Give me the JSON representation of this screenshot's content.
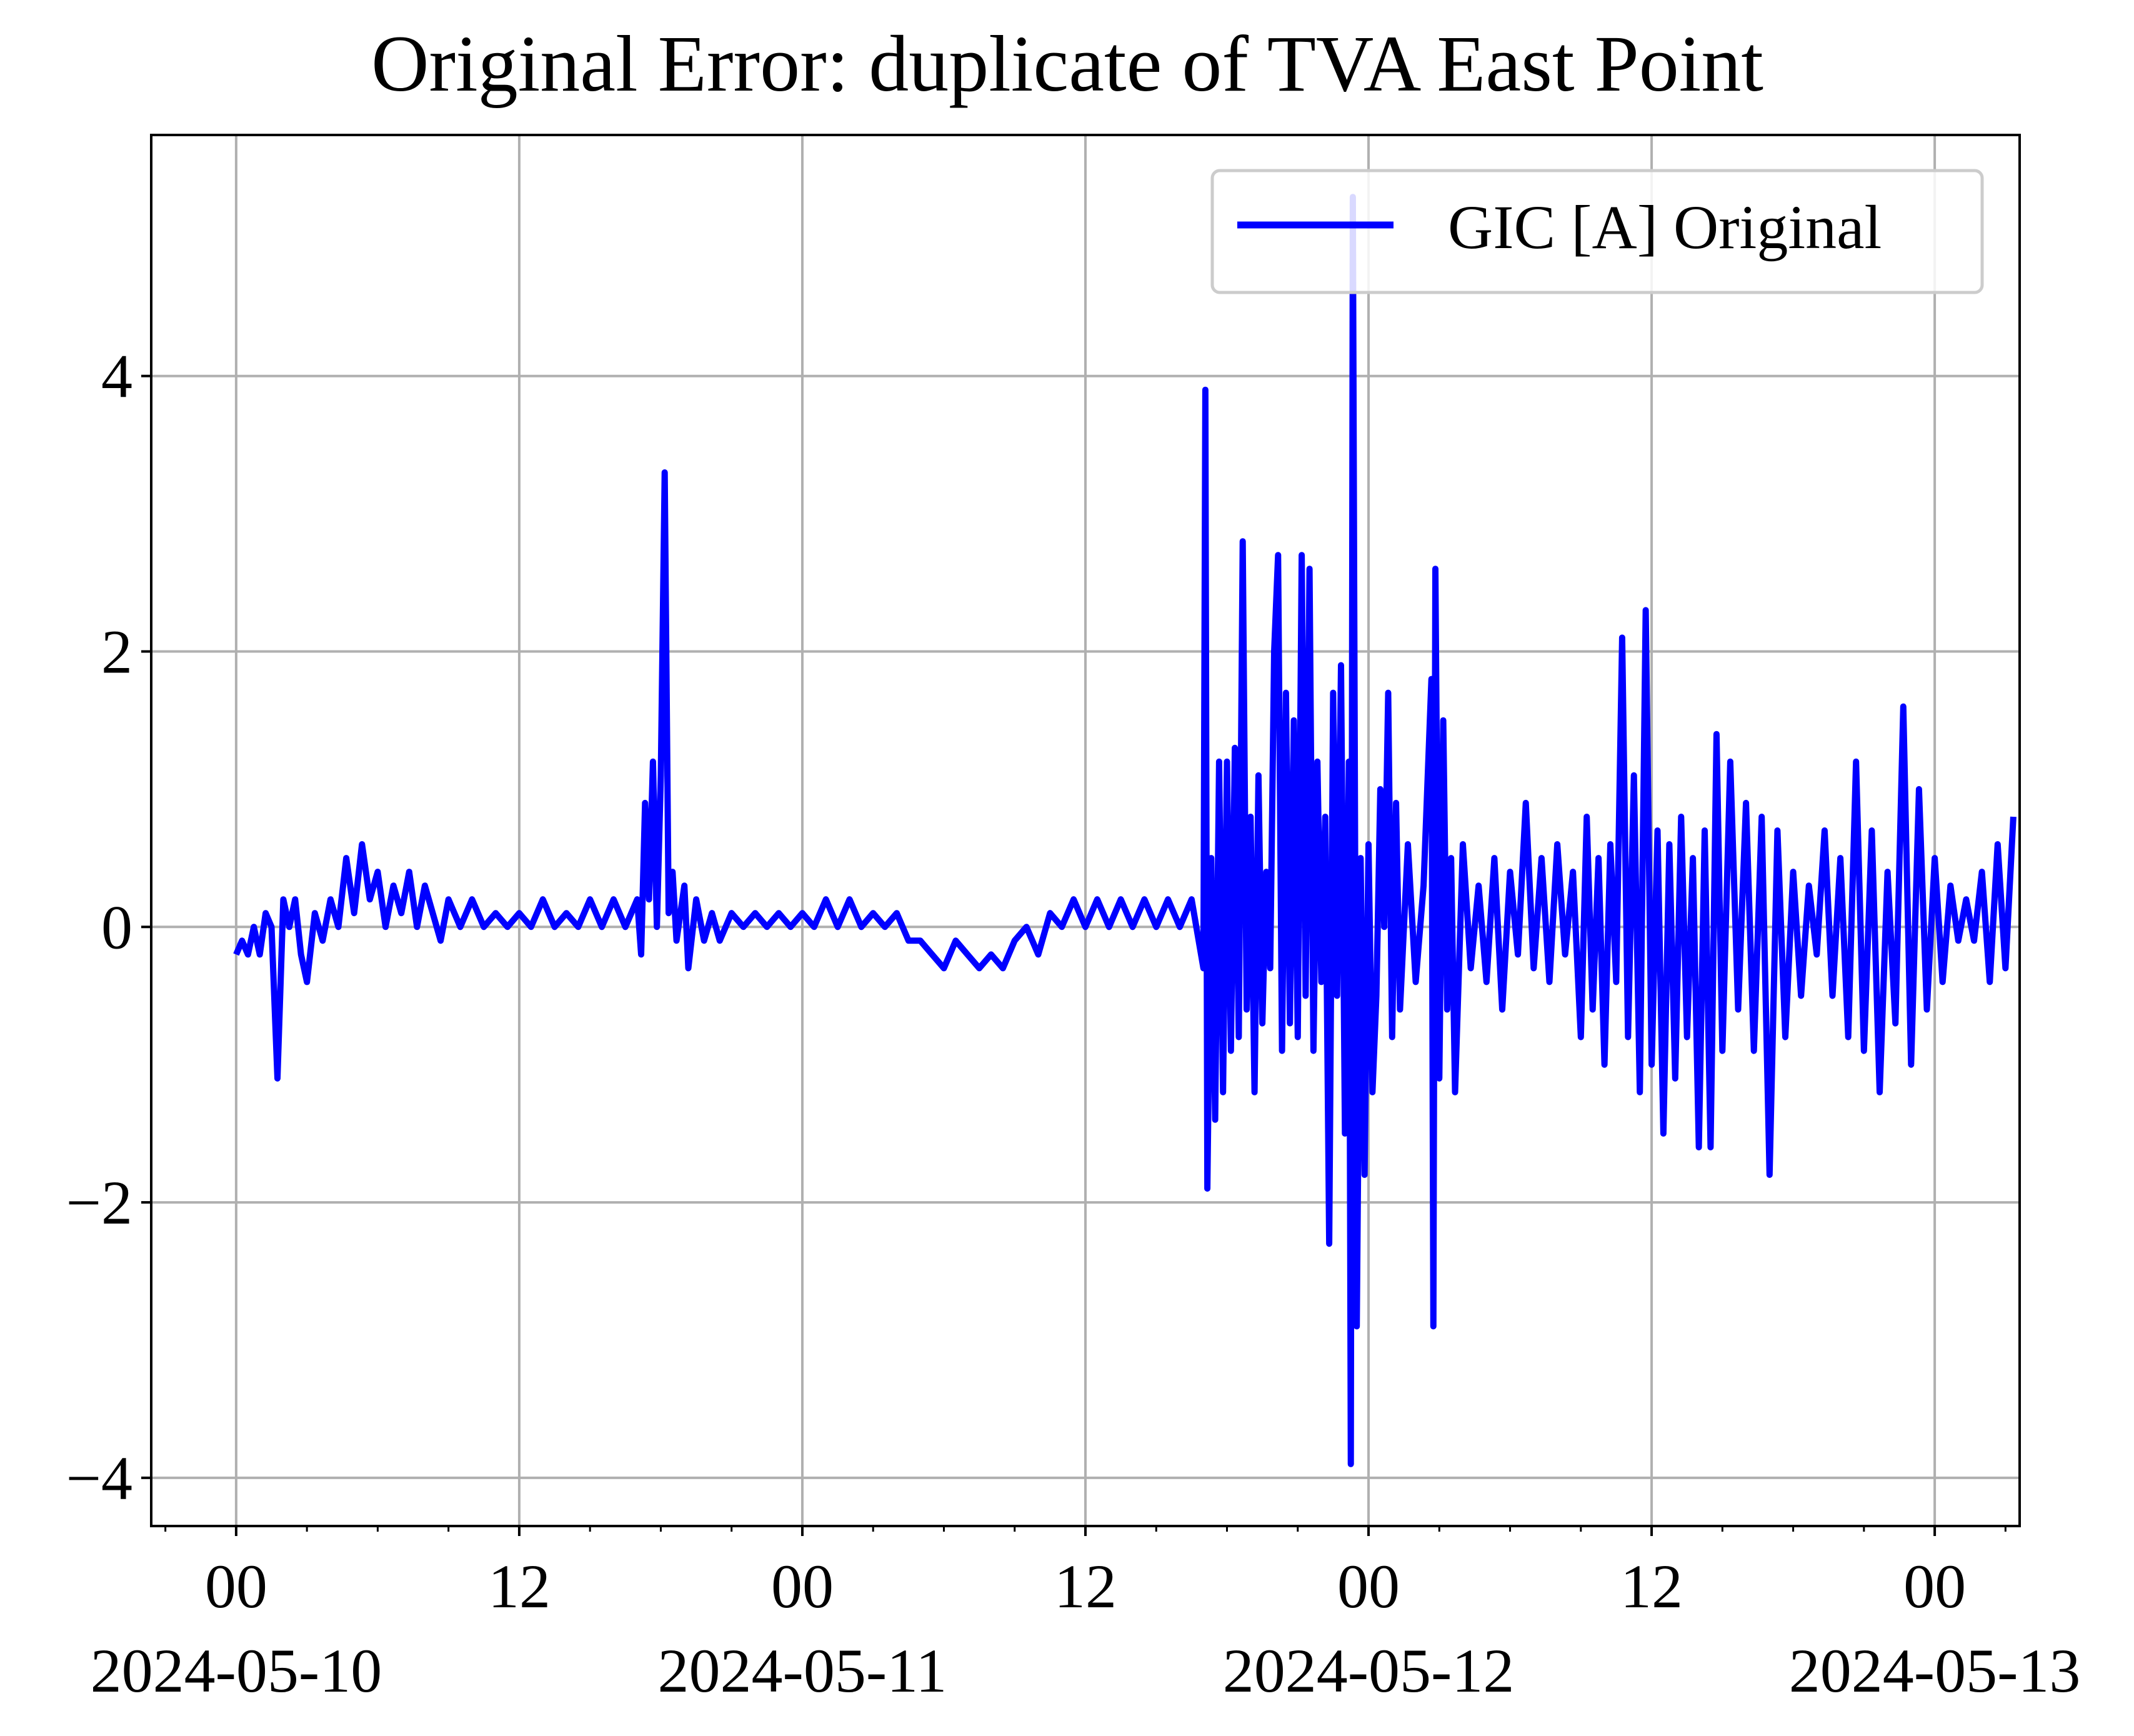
{
  "chart_data": {
    "type": "line",
    "title": "Original Error: duplicate of TVA East Point",
    "xlabel": "",
    "ylabel": "",
    "x_range": [
      "2024-05-09T20:24",
      "2024-05-13T03:36"
    ],
    "ylim": [
      -4.35,
      5.75
    ],
    "y_ticks": [
      -4,
      -2,
      0,
      2,
      4
    ],
    "y_tick_labels": [
      "−4",
      "−2",
      "0",
      "2",
      "4"
    ],
    "x_ticks": [
      {
        "at": "2024-05-10T00:00",
        "hour": "00",
        "date": "2024-05-10"
      },
      {
        "at": "2024-05-10T12:00",
        "hour": "12",
        "date": ""
      },
      {
        "at": "2024-05-11T00:00",
        "hour": "00",
        "date": "2024-05-11"
      },
      {
        "at": "2024-05-11T12:00",
        "hour": "12",
        "date": ""
      },
      {
        "at": "2024-05-12T00:00",
        "hour": "00",
        "date": "2024-05-12"
      },
      {
        "at": "2024-05-12T12:00",
        "hour": "12",
        "date": ""
      },
      {
        "at": "2024-05-13T00:00",
        "hour": "00",
        "date": "2024-05-13"
      }
    ],
    "minor_tick_interval_hours": 3,
    "grid": true,
    "legend_position": "upper right",
    "series": [
      {
        "name": "GIC [A] Original",
        "color": "#0000ff",
        "points": [
          [
            "2024-05-10T00:00",
            -0.2
          ],
          [
            "2024-05-10T00:15",
            -0.1
          ],
          [
            "2024-05-10T00:30",
            -0.2
          ],
          [
            "2024-05-10T00:45",
            0.0
          ],
          [
            "2024-05-10T01:00",
            -0.2
          ],
          [
            "2024-05-10T01:15",
            0.1
          ],
          [
            "2024-05-10T01:30",
            0.0
          ],
          [
            "2024-05-10T01:45",
            -1.1
          ],
          [
            "2024-05-10T02:00",
            0.2
          ],
          [
            "2024-05-10T02:15",
            0.0
          ],
          [
            "2024-05-10T02:30",
            0.2
          ],
          [
            "2024-05-10T02:45",
            -0.2
          ],
          [
            "2024-05-10T03:00",
            -0.4
          ],
          [
            "2024-05-10T03:20",
            0.1
          ],
          [
            "2024-05-10T03:40",
            -0.1
          ],
          [
            "2024-05-10T04:00",
            0.2
          ],
          [
            "2024-05-10T04:20",
            0.0
          ],
          [
            "2024-05-10T04:40",
            0.5
          ],
          [
            "2024-05-10T05:00",
            0.1
          ],
          [
            "2024-05-10T05:20",
            0.6
          ],
          [
            "2024-05-10T05:40",
            0.2
          ],
          [
            "2024-05-10T06:00",
            0.4
          ],
          [
            "2024-05-10T06:20",
            0.0
          ],
          [
            "2024-05-10T06:40",
            0.3
          ],
          [
            "2024-05-10T07:00",
            0.1
          ],
          [
            "2024-05-10T07:20",
            0.4
          ],
          [
            "2024-05-10T07:40",
            0.0
          ],
          [
            "2024-05-10T08:00",
            0.3
          ],
          [
            "2024-05-10T08:20",
            0.1
          ],
          [
            "2024-05-10T08:40",
            -0.1
          ],
          [
            "2024-05-10T09:00",
            0.2
          ],
          [
            "2024-05-10T09:30",
            0.0
          ],
          [
            "2024-05-10T10:00",
            0.2
          ],
          [
            "2024-05-10T10:30",
            0.0
          ],
          [
            "2024-05-10T11:00",
            0.1
          ],
          [
            "2024-05-10T11:30",
            0.0
          ],
          [
            "2024-05-10T12:00",
            0.1
          ],
          [
            "2024-05-10T12:30",
            0.0
          ],
          [
            "2024-05-10T13:00",
            0.2
          ],
          [
            "2024-05-10T13:30",
            0.0
          ],
          [
            "2024-05-10T14:00",
            0.1
          ],
          [
            "2024-05-10T14:30",
            0.0
          ],
          [
            "2024-05-10T15:00",
            0.2
          ],
          [
            "2024-05-10T15:30",
            0.0
          ],
          [
            "2024-05-10T16:00",
            0.2
          ],
          [
            "2024-05-10T16:30",
            0.0
          ],
          [
            "2024-05-10T17:00",
            0.2
          ],
          [
            "2024-05-10T17:10",
            -0.2
          ],
          [
            "2024-05-10T17:20",
            0.9
          ],
          [
            "2024-05-10T17:30",
            0.2
          ],
          [
            "2024-05-10T17:40",
            1.2
          ],
          [
            "2024-05-10T17:50",
            0.0
          ],
          [
            "2024-05-10T18:00",
            1.1
          ],
          [
            "2024-05-10T18:10",
            3.3
          ],
          [
            "2024-05-10T18:20",
            0.1
          ],
          [
            "2024-05-10T18:30",
            0.4
          ],
          [
            "2024-05-10T18:40",
            -0.1
          ],
          [
            "2024-05-10T19:00",
            0.3
          ],
          [
            "2024-05-10T19:10",
            -0.3
          ],
          [
            "2024-05-10T19:30",
            0.2
          ],
          [
            "2024-05-10T19:50",
            -0.1
          ],
          [
            "2024-05-10T20:10",
            0.1
          ],
          [
            "2024-05-10T20:30",
            -0.1
          ],
          [
            "2024-05-10T21:00",
            0.1
          ],
          [
            "2024-05-10T21:30",
            0.0
          ],
          [
            "2024-05-10T22:00",
            0.1
          ],
          [
            "2024-05-10T22:30",
            0.0
          ],
          [
            "2024-05-10T23:00",
            0.1
          ],
          [
            "2024-05-10T23:30",
            0.0
          ],
          [
            "2024-05-11T00:00",
            0.1
          ],
          [
            "2024-05-11T00:30",
            0.0
          ],
          [
            "2024-05-11T01:00",
            0.2
          ],
          [
            "2024-05-11T01:30",
            0.0
          ],
          [
            "2024-05-11T02:00",
            0.2
          ],
          [
            "2024-05-11T02:30",
            0.0
          ],
          [
            "2024-05-11T03:00",
            0.1
          ],
          [
            "2024-05-11T03:30",
            0.0
          ],
          [
            "2024-05-11T04:00",
            0.1
          ],
          [
            "2024-05-11T04:30",
            -0.1
          ],
          [
            "2024-05-11T05:00",
            -0.1
          ],
          [
            "2024-05-11T05:30",
            -0.2
          ],
          [
            "2024-05-11T06:00",
            -0.3
          ],
          [
            "2024-05-11T06:30",
            -0.1
          ],
          [
            "2024-05-11T07:00",
            -0.2
          ],
          [
            "2024-05-11T07:30",
            -0.3
          ],
          [
            "2024-05-11T08:00",
            -0.2
          ],
          [
            "2024-05-11T08:30",
            -0.3
          ],
          [
            "2024-05-11T09:00",
            -0.1
          ],
          [
            "2024-05-11T09:30",
            0.0
          ],
          [
            "2024-05-11T10:00",
            -0.2
          ],
          [
            "2024-05-11T10:30",
            0.1
          ],
          [
            "2024-05-11T11:00",
            0.0
          ],
          [
            "2024-05-11T11:30",
            0.2
          ],
          [
            "2024-05-11T12:00",
            0.0
          ],
          [
            "2024-05-11T12:30",
            0.2
          ],
          [
            "2024-05-11T13:00",
            0.0
          ],
          [
            "2024-05-11T13:30",
            0.2
          ],
          [
            "2024-05-11T14:00",
            0.0
          ],
          [
            "2024-05-11T14:30",
            0.2
          ],
          [
            "2024-05-11T15:00",
            0.0
          ],
          [
            "2024-05-11T15:30",
            0.2
          ],
          [
            "2024-05-11T16:00",
            0.0
          ],
          [
            "2024-05-11T16:30",
            0.2
          ],
          [
            "2024-05-11T17:00",
            -0.3
          ],
          [
            "2024-05-11T17:05",
            3.9
          ],
          [
            "2024-05-11T17:10",
            -1.9
          ],
          [
            "2024-05-11T17:20",
            0.5
          ],
          [
            "2024-05-11T17:30",
            -1.4
          ],
          [
            "2024-05-11T17:40",
            1.2
          ],
          [
            "2024-05-11T17:50",
            -1.2
          ],
          [
            "2024-05-11T18:00",
            1.2
          ],
          [
            "2024-05-11T18:10",
            -0.9
          ],
          [
            "2024-05-11T18:20",
            1.3
          ],
          [
            "2024-05-11T18:30",
            -0.8
          ],
          [
            "2024-05-11T18:40",
            2.8
          ],
          [
            "2024-05-11T18:50",
            -0.6
          ],
          [
            "2024-05-11T19:00",
            0.8
          ],
          [
            "2024-05-11T19:10",
            -1.2
          ],
          [
            "2024-05-11T19:20",
            1.1
          ],
          [
            "2024-05-11T19:30",
            -0.7
          ],
          [
            "2024-05-11T19:40",
            0.4
          ],
          [
            "2024-05-11T19:50",
            -0.3
          ],
          [
            "2024-05-11T20:00",
            2.0
          ],
          [
            "2024-05-11T20:10",
            2.7
          ],
          [
            "2024-05-11T20:20",
            -0.9
          ],
          [
            "2024-05-11T20:30",
            1.7
          ],
          [
            "2024-05-11T20:40",
            -0.7
          ],
          [
            "2024-05-11T20:50",
            1.5
          ],
          [
            "2024-05-11T21:00",
            -0.8
          ],
          [
            "2024-05-11T21:10",
            2.7
          ],
          [
            "2024-05-11T21:20",
            -0.5
          ],
          [
            "2024-05-11T21:30",
            2.6
          ],
          [
            "2024-05-11T21:40",
            -0.9
          ],
          [
            "2024-05-11T21:50",
            1.2
          ],
          [
            "2024-05-11T22:00",
            -0.4
          ],
          [
            "2024-05-11T22:10",
            0.8
          ],
          [
            "2024-05-11T22:20",
            -2.3
          ],
          [
            "2024-05-11T22:30",
            1.7
          ],
          [
            "2024-05-11T22:40",
            -0.5
          ],
          [
            "2024-05-11T22:50",
            1.9
          ],
          [
            "2024-05-11T23:00",
            -1.5
          ],
          [
            "2024-05-11T23:10",
            1.2
          ],
          [
            "2024-05-11T23:15",
            -3.9
          ],
          [
            "2024-05-11T23:20",
            5.3
          ],
          [
            "2024-05-11T23:30",
            -2.9
          ],
          [
            "2024-05-11T23:40",
            0.5
          ],
          [
            "2024-05-11T23:50",
            -1.8
          ],
          [
            "2024-05-12T00:00",
            0.6
          ],
          [
            "2024-05-12T00:10",
            -1.2
          ],
          [
            "2024-05-12T00:20",
            -0.5
          ],
          [
            "2024-05-12T00:30",
            1.0
          ],
          [
            "2024-05-12T00:40",
            0.0
          ],
          [
            "2024-05-12T00:50",
            1.7
          ],
          [
            "2024-05-12T01:00",
            -0.8
          ],
          [
            "2024-05-12T01:10",
            0.9
          ],
          [
            "2024-05-12T01:20",
            -0.6
          ],
          [
            "2024-05-12T01:40",
            0.6
          ],
          [
            "2024-05-12T02:00",
            -0.4
          ],
          [
            "2024-05-12T02:20",
            0.3
          ],
          [
            "2024-05-12T02:40",
            1.8
          ],
          [
            "2024-05-12T02:45",
            -2.9
          ],
          [
            "2024-05-12T02:50",
            2.6
          ],
          [
            "2024-05-12T03:00",
            -1.1
          ],
          [
            "2024-05-12T03:10",
            1.5
          ],
          [
            "2024-05-12T03:20",
            -0.6
          ],
          [
            "2024-05-12T03:30",
            0.5
          ],
          [
            "2024-05-12T03:40",
            -1.2
          ],
          [
            "2024-05-12T04:00",
            0.6
          ],
          [
            "2024-05-12T04:20",
            -0.3
          ],
          [
            "2024-05-12T04:40",
            0.3
          ],
          [
            "2024-05-12T05:00",
            -0.4
          ],
          [
            "2024-05-12T05:20",
            0.5
          ],
          [
            "2024-05-12T05:40",
            -0.6
          ],
          [
            "2024-05-12T06:00",
            0.4
          ],
          [
            "2024-05-12T06:20",
            -0.2
          ],
          [
            "2024-05-12T06:40",
            0.9
          ],
          [
            "2024-05-12T07:00",
            -0.3
          ],
          [
            "2024-05-12T07:20",
            0.5
          ],
          [
            "2024-05-12T07:40",
            -0.4
          ],
          [
            "2024-05-12T08:00",
            0.6
          ],
          [
            "2024-05-12T08:20",
            -0.2
          ],
          [
            "2024-05-12T08:40",
            0.4
          ],
          [
            "2024-05-12T09:00",
            -0.8
          ],
          [
            "2024-05-12T09:15",
            0.8
          ],
          [
            "2024-05-12T09:30",
            -0.6
          ],
          [
            "2024-05-12T09:45",
            0.5
          ],
          [
            "2024-05-12T10:00",
            -1.0
          ],
          [
            "2024-05-12T10:15",
            0.6
          ],
          [
            "2024-05-12T10:30",
            -0.4
          ],
          [
            "2024-05-12T10:45",
            2.1
          ],
          [
            "2024-05-12T11:00",
            -0.8
          ],
          [
            "2024-05-12T11:15",
            1.1
          ],
          [
            "2024-05-12T11:30",
            -1.2
          ],
          [
            "2024-05-12T11:45",
            2.3
          ],
          [
            "2024-05-12T12:00",
            -1.0
          ],
          [
            "2024-05-12T12:15",
            0.7
          ],
          [
            "2024-05-12T12:30",
            -1.5
          ],
          [
            "2024-05-12T12:45",
            0.6
          ],
          [
            "2024-05-12T13:00",
            -1.1
          ],
          [
            "2024-05-12T13:15",
            0.8
          ],
          [
            "2024-05-12T13:30",
            -0.8
          ],
          [
            "2024-05-12T13:45",
            0.5
          ],
          [
            "2024-05-12T14:00",
            -1.6
          ],
          [
            "2024-05-12T14:15",
            0.7
          ],
          [
            "2024-05-12T14:30",
            -1.6
          ],
          [
            "2024-05-12T14:45",
            1.4
          ],
          [
            "2024-05-12T15:00",
            -0.9
          ],
          [
            "2024-05-12T15:20",
            1.2
          ],
          [
            "2024-05-12T15:40",
            -0.6
          ],
          [
            "2024-05-12T16:00",
            0.9
          ],
          [
            "2024-05-12T16:20",
            -0.9
          ],
          [
            "2024-05-12T16:40",
            0.8
          ],
          [
            "2024-05-12T17:00",
            -1.8
          ],
          [
            "2024-05-12T17:20",
            0.7
          ],
          [
            "2024-05-12T17:40",
            -0.8
          ],
          [
            "2024-05-12T18:00",
            0.4
          ],
          [
            "2024-05-12T18:20",
            -0.5
          ],
          [
            "2024-05-12T18:40",
            0.3
          ],
          [
            "2024-05-12T19:00",
            -0.2
          ],
          [
            "2024-05-12T19:20",
            0.7
          ],
          [
            "2024-05-12T19:40",
            -0.5
          ],
          [
            "2024-05-12T20:00",
            0.5
          ],
          [
            "2024-05-12T20:20",
            -0.8
          ],
          [
            "2024-05-12T20:40",
            1.2
          ],
          [
            "2024-05-12T21:00",
            -0.9
          ],
          [
            "2024-05-12T21:20",
            0.7
          ],
          [
            "2024-05-12T21:40",
            -1.2
          ],
          [
            "2024-05-12T22:00",
            0.4
          ],
          [
            "2024-05-12T22:20",
            -0.7
          ],
          [
            "2024-05-12T22:40",
            1.6
          ],
          [
            "2024-05-12T23:00",
            -1.0
          ],
          [
            "2024-05-12T23:20",
            1.0
          ],
          [
            "2024-05-12T23:40",
            -0.6
          ],
          [
            "2024-05-13T00:00",
            0.5
          ],
          [
            "2024-05-13T00:20",
            -0.4
          ],
          [
            "2024-05-13T00:40",
            0.3
          ],
          [
            "2024-05-13T01:00",
            -0.1
          ],
          [
            "2024-05-13T01:20",
            0.2
          ],
          [
            "2024-05-13T01:40",
            -0.1
          ],
          [
            "2024-05-13T02:00",
            0.4
          ],
          [
            "2024-05-13T02:20",
            -0.4
          ],
          [
            "2024-05-13T02:40",
            0.6
          ],
          [
            "2024-05-13T03:00",
            -0.3
          ],
          [
            "2024-05-13T03:20",
            0.8
          ]
        ]
      }
    ]
  }
}
